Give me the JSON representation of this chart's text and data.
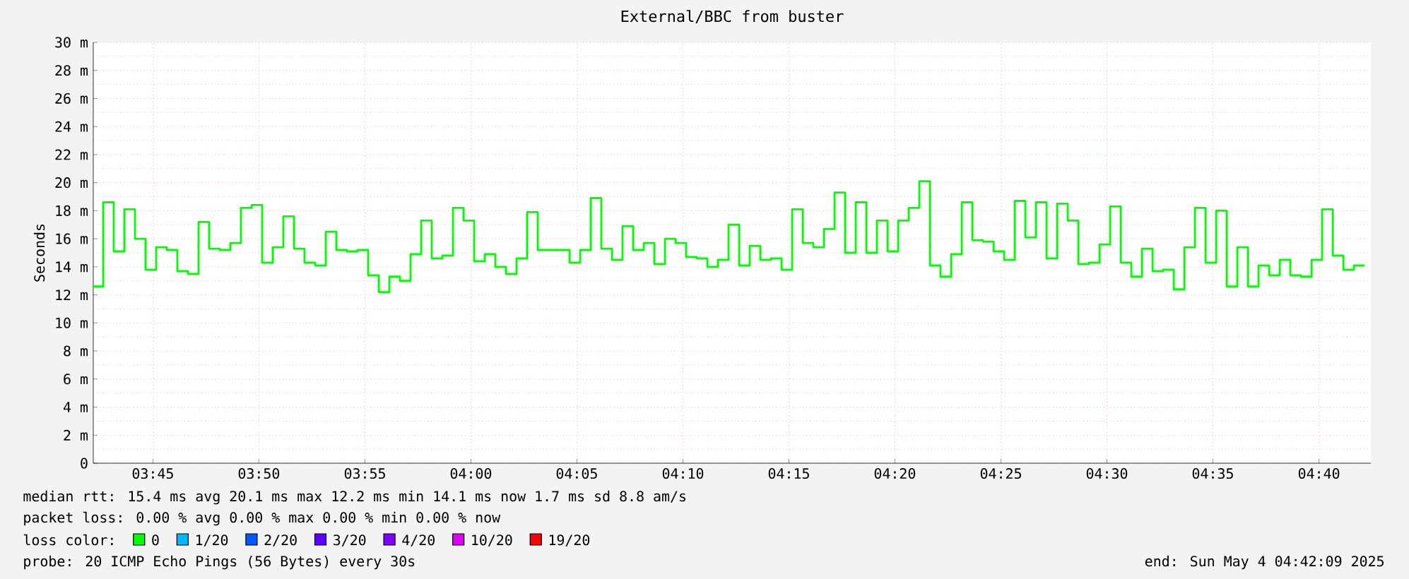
{
  "chart_data": {
    "type": "step",
    "title": "External/BBC from buster",
    "ylabel": "Seconds",
    "x": [
      3.7067,
      3.715,
      3.7233,
      3.7317,
      3.74,
      3.7483,
      3.7567,
      3.765,
      3.7733,
      3.7817,
      3.79,
      3.7983,
      3.8067,
      3.815,
      3.8233,
      3.8317,
      3.84,
      3.8483,
      3.8567,
      3.865,
      3.8733,
      3.8817,
      3.89,
      3.8983,
      3.9067,
      3.915,
      3.9233,
      3.9317,
      3.94,
      3.9483,
      3.9567,
      3.965,
      3.9733,
      3.9817,
      3.99,
      3.9983,
      4.0067,
      4.015,
      4.0233,
      4.0317,
      4.04,
      4.0483,
      4.0567,
      4.065,
      4.0733,
      4.0817,
      4.09,
      4.0983,
      4.1067,
      4.115,
      4.1233,
      4.1317,
      4.14,
      4.1483,
      4.1567,
      4.165,
      4.1733,
      4.1817,
      4.19,
      4.1983,
      4.2067,
      4.215,
      4.2233,
      4.2317,
      4.24,
      4.2483,
      4.2567,
      4.265,
      4.2733,
      4.2817,
      4.29,
      4.2983,
      4.3067,
      4.315,
      4.3233,
      4.3317,
      4.34,
      4.3483,
      4.3567,
      4.365,
      4.3733,
      4.3817,
      4.39,
      4.3983,
      4.4067,
      4.415,
      4.4233,
      4.4317,
      4.44,
      4.4483,
      4.4567,
      4.465,
      4.4733,
      4.4817,
      4.49,
      4.4983,
      4.5067,
      4.515,
      4.5233,
      4.5317,
      4.54,
      4.5483,
      4.5567,
      4.565,
      4.5733,
      4.5817,
      4.59,
      4.5983,
      4.6067,
      4.615,
      4.6233,
      4.6317,
      4.64,
      4.6483,
      4.6567,
      4.665,
      4.6733,
      4.6817,
      4.69,
      4.6983
    ],
    "series": [
      {
        "name": "0",
        "color": "#00ff00",
        "values": [
          12.6,
          18.6,
          15.1,
          18.1,
          16.0,
          13.8,
          15.4,
          15.2,
          13.7,
          13.5,
          17.2,
          15.3,
          15.2,
          15.7,
          18.2,
          18.4,
          14.3,
          15.4,
          17.6,
          15.3,
          14.3,
          14.1,
          16.5,
          15.2,
          15.1,
          15.2,
          13.4,
          12.2,
          13.3,
          13.0,
          14.9,
          17.3,
          14.6,
          14.8,
          18.2,
          17.3,
          14.4,
          14.9,
          14.0,
          13.5,
          14.6,
          17.9,
          15.2,
          15.2,
          15.2,
          14.3,
          15.2,
          18.9,
          15.3,
          14.5,
          16.9,
          15.2,
          15.7,
          14.2,
          16.0,
          15.7,
          14.7,
          14.6,
          14.0,
          14.5,
          17.0,
          14.1,
          15.5,
          14.5,
          14.6,
          13.8,
          18.1,
          15.7,
          15.4,
          16.7,
          19.3,
          15.0,
          18.6,
          15.0,
          17.3,
          15.1,
          17.3,
          18.2,
          20.1,
          14.1,
          13.3,
          14.9,
          18.6,
          15.9,
          15.8,
          15.1,
          14.5,
          18.7,
          16.1,
          18.6,
          14.6,
          18.5,
          17.3,
          14.2,
          14.3,
          15.6,
          18.3,
          14.3,
          13.3,
          15.3,
          13.7,
          13.8,
          12.4,
          15.4,
          18.2,
          14.3,
          18.0,
          12.6,
          15.4,
          12.6,
          14.1,
          13.4,
          14.5,
          13.4,
          13.3,
          14.5,
          18.1,
          14.8,
          13.8,
          14.1
        ]
      },
      {
        "name": "1/20",
        "color": "#00b8ff",
        "values": [
          null,
          null,
          null,
          null,
          null,
          null,
          null,
          null,
          null,
          null,
          null,
          null,
          null,
          null,
          null,
          null,
          null,
          null,
          null,
          null,
          null,
          null,
          null,
          null,
          null,
          null,
          null,
          null,
          null,
          null,
          null,
          null,
          null,
          null,
          null,
          null,
          null,
          null,
          null,
          null,
          null,
          null,
          null,
          null,
          null,
          null,
          null,
          null,
          null,
          null,
          null,
          null,
          null,
          null,
          null,
          null,
          null,
          null,
          null,
          null,
          null,
          null,
          null,
          null,
          null,
          null,
          null,
          null,
          null,
          null,
          null,
          null,
          null,
          null,
          null,
          null,
          null,
          null,
          null,
          null,
          null,
          null,
          null,
          null,
          null,
          null,
          null,
          null,
          null,
          null,
          null,
          null,
          null,
          null,
          null,
          null,
          null,
          null,
          null,
          null,
          null,
          null,
          null,
          null,
          null,
          null,
          null,
          null,
          null,
          null,
          null,
          null,
          null,
          null,
          null,
          null,
          null,
          null,
          null,
          null
        ]
      },
      {
        "name": "2/20",
        "color": "#0059ff",
        "values": [
          null,
          null,
          null,
          null,
          null,
          null,
          null,
          null,
          null,
          null,
          null,
          null,
          null,
          null,
          null,
          null,
          null,
          null,
          null,
          null,
          null,
          null,
          null,
          null,
          null,
          null,
          null,
          null,
          null,
          null,
          null,
          null,
          null,
          null,
          null,
          null,
          null,
          null,
          null,
          null,
          null,
          null,
          null,
          null,
          null,
          null,
          null,
          null,
          null,
          null,
          null,
          null,
          null,
          null,
          null,
          null,
          null,
          null,
          null,
          null,
          null,
          null,
          null,
          null,
          null,
          null,
          null,
          null,
          null,
          null,
          null,
          null,
          null,
          null,
          null,
          null,
          null,
          null,
          null,
          null,
          null,
          null,
          null,
          null,
          null,
          null,
          null,
          null,
          null,
          null,
          null,
          null,
          null,
          null,
          null,
          null,
          null,
          null,
          null,
          null,
          null,
          null,
          null,
          null,
          null,
          null,
          null,
          null,
          null,
          null,
          null,
          null,
          null,
          null,
          null,
          null,
          null,
          null,
          null,
          null
        ]
      },
      {
        "name": "3/20",
        "color": "#5e00ff",
        "values": [
          null,
          null,
          null,
          null,
          null,
          null,
          null,
          null,
          null,
          null,
          null,
          null,
          null,
          null,
          null,
          null,
          null,
          null,
          null,
          null,
          null,
          null,
          null,
          null,
          null,
          null,
          null,
          null,
          null,
          null,
          null,
          null,
          null,
          null,
          null,
          null,
          null,
          null,
          null,
          null,
          null,
          null,
          null,
          null,
          null,
          null,
          null,
          null,
          null,
          null,
          null,
          null,
          null,
          null,
          null,
          null,
          null,
          null,
          null,
          null,
          null,
          null,
          null,
          null,
          null,
          null,
          null,
          null,
          null,
          null,
          null,
          null,
          null,
          null,
          null,
          null,
          null,
          null,
          null,
          null,
          null,
          null,
          null,
          null,
          null,
          null,
          null,
          null,
          null,
          null,
          null,
          null,
          null,
          null,
          null,
          null,
          null,
          null,
          null,
          null,
          null,
          null,
          null,
          null,
          null,
          null,
          null,
          null,
          null,
          null,
          null,
          null,
          null,
          null,
          null,
          null,
          null,
          null,
          null,
          null
        ]
      },
      {
        "name": "4/20",
        "color": "#7e00ff",
        "values": [
          null,
          null,
          null,
          null,
          null,
          null,
          null,
          null,
          null,
          null,
          null,
          null,
          null,
          null,
          null,
          null,
          null,
          null,
          null,
          null,
          null,
          null,
          null,
          null,
          null,
          null,
          null,
          null,
          null,
          null,
          null,
          null,
          null,
          null,
          null,
          null,
          null,
          null,
          null,
          null,
          null,
          null,
          null,
          null,
          null,
          null,
          null,
          null,
          null,
          null,
          null,
          null,
          null,
          null,
          null,
          null,
          null,
          null,
          null,
          null,
          null,
          null,
          null,
          null,
          null,
          null,
          null,
          null,
          null,
          null,
          null,
          null,
          null,
          null,
          null,
          null,
          null,
          null,
          null,
          null,
          null,
          null,
          null,
          null,
          null,
          null,
          null,
          null,
          null,
          null,
          null,
          null,
          null,
          null,
          null,
          null,
          null,
          null,
          null,
          null,
          null,
          null,
          null,
          null,
          null,
          null,
          null,
          null,
          null,
          null,
          null,
          null,
          null,
          null,
          null,
          null,
          null,
          null,
          null,
          null
        ]
      },
      {
        "name": "10/20",
        "color": "#dd00ff",
        "values": [
          null,
          null,
          null,
          null,
          null,
          null,
          null,
          null,
          null,
          null,
          null,
          null,
          null,
          null,
          null,
          null,
          null,
          null,
          null,
          null,
          null,
          null,
          null,
          null,
          null,
          null,
          null,
          null,
          null,
          null,
          null,
          null,
          null,
          null,
          null,
          null,
          null,
          null,
          null,
          null,
          null,
          null,
          null,
          null,
          null,
          null,
          null,
          null,
          null,
          null,
          null,
          null,
          null,
          null,
          null,
          null,
          null,
          null,
          null,
          null,
          null,
          null,
          null,
          null,
          null,
          null,
          null,
          null,
          null,
          null,
          null,
          null,
          null,
          null,
          null,
          null,
          null,
          null,
          null,
          null,
          null,
          null,
          null,
          null,
          null,
          null,
          null,
          null,
          null,
          null,
          null,
          null,
          null,
          null,
          null,
          null,
          null,
          null,
          null,
          null,
          null,
          null,
          null,
          null,
          null,
          null,
          null,
          null,
          null,
          null,
          null,
          null,
          null,
          null,
          null,
          null,
          null,
          null,
          null,
          null
        ]
      },
      {
        "name": "19/20",
        "color": "#ff0000",
        "values": [
          null,
          null,
          null,
          null,
          null,
          null,
          null,
          null,
          null,
          null,
          null,
          null,
          null,
          null,
          null,
          null,
          null,
          null,
          null,
          null,
          null,
          null,
          null,
          null,
          null,
          null,
          null,
          null,
          null,
          null,
          null,
          null,
          null,
          null,
          null,
          null,
          null,
          null,
          null,
          null,
          null,
          null,
          null,
          null,
          null,
          null,
          null,
          null,
          null,
          null,
          null,
          null,
          null,
          null,
          null,
          null,
          null,
          null,
          null,
          null,
          null,
          null,
          null,
          null,
          null,
          null,
          null,
          null,
          null,
          null,
          null,
          null,
          null,
          null,
          null,
          null,
          null,
          null,
          null,
          null,
          null,
          null,
          null,
          null,
          null,
          null,
          null,
          null,
          null,
          null,
          null,
          null,
          null,
          null,
          null,
          null,
          null,
          null,
          null,
          null,
          null,
          null,
          null,
          null,
          null,
          null,
          null,
          null,
          null,
          null,
          null,
          null,
          null,
          null,
          null,
          null,
          null,
          null,
          null,
          null
        ]
      }
    ],
    "legend": "bottom",
    "legend_title": "loss color:",
    "xlim": [
      3.7031,
      4.7075
    ],
    "xticks": [
      {
        "value": 3.75,
        "label": "03:45"
      },
      {
        "value": 3.8333,
        "label": "03:50"
      },
      {
        "value": 3.9167,
        "label": "03:55"
      },
      {
        "value": 4.0,
        "label": "04:00"
      },
      {
        "value": 4.0833,
        "label": "04:05"
      },
      {
        "value": 4.1667,
        "label": "04:10"
      },
      {
        "value": 4.25,
        "label": "04:15"
      },
      {
        "value": 4.3333,
        "label": "04:20"
      },
      {
        "value": 4.4167,
        "label": "04:25"
      },
      {
        "value": 4.5,
        "label": "04:30"
      },
      {
        "value": 4.5833,
        "label": "04:35"
      },
      {
        "value": 4.6667,
        "label": "04:40"
      }
    ],
    "ylim": [
      0,
      30
    ],
    "yticks": [
      0,
      {
        "value": 2,
        "label": "2 m"
      },
      {
        "value": 4,
        "label": "4 m"
      },
      {
        "value": 6,
        "label": "6 m"
      },
      {
        "value": 8,
        "label": "8 m"
      },
      {
        "value": 10,
        "label": "10 m"
      },
      {
        "value": 12,
        "label": "12 m"
      },
      {
        "value": 14,
        "label": "14 m"
      },
      {
        "value": 16,
        "label": "16 m"
      },
      {
        "value": 18,
        "label": "18 m"
      },
      {
        "value": 20,
        "label": "20 m"
      },
      {
        "value": 22,
        "label": "22 m"
      },
      {
        "value": 24,
        "label": "24 m"
      },
      {
        "value": 26,
        "label": "26 m"
      },
      {
        "value": 28,
        "label": "28 m"
      },
      {
        "value": 30,
        "label": "30 m"
      }
    ],
    "grid": true,
    "annotations": [
      "median rtt: 15.4 ms avg 20.1 ms max 12.2 ms min 14.1 ms now 1.7 ms sd 8.8 am/s",
      "packet loss: 0.00 % avg 0.00 % max 0.00 % min 0.00 % now",
      "probe: 20 ICMP Echo Pings (56 Bytes) every 30s",
      "end: Sun May 4 04:42:09 2025"
    ]
  }
}
